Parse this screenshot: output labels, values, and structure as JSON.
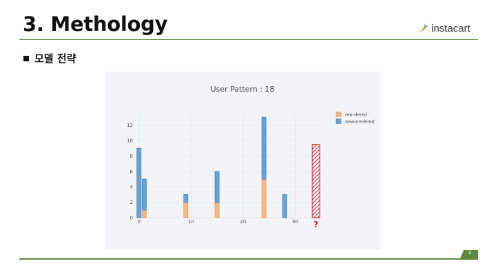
{
  "slide": {
    "title": "3. Methology",
    "bullet": "모델 전략",
    "page_number": "1"
  },
  "logo": {
    "text": "instacart",
    "icon": "carrot-icon"
  },
  "colors": {
    "rule": "#5c8a3a",
    "reordered": "#f5b982",
    "neworedered": "#6aa3d5",
    "hatch": "#d9262c",
    "question": "#d9262c"
  },
  "chart_data": {
    "type": "bar",
    "barmode": "stack",
    "title": "User Pattern : 18",
    "xlabel": "",
    "ylabel": "",
    "xlim": [
      -0.5,
      35.5
    ],
    "ylim": [
      0,
      13.4
    ],
    "xticks": [
      0,
      10,
      20,
      30
    ],
    "yticks": [
      0,
      2,
      4,
      6,
      8,
      10,
      12
    ],
    "grid": true,
    "legend_position": "top-right",
    "x": [
      0,
      1,
      9,
      15,
      24,
      28
    ],
    "series": [
      {
        "name": "reordered",
        "values": [
          0,
          1,
          2,
          2,
          5,
          0
        ]
      },
      {
        "name": "neworedered",
        "values": [
          9,
          4,
          1,
          4,
          8,
          3
        ]
      }
    ],
    "prediction": {
      "x": 34,
      "value": 9.5,
      "label": "?"
    }
  }
}
